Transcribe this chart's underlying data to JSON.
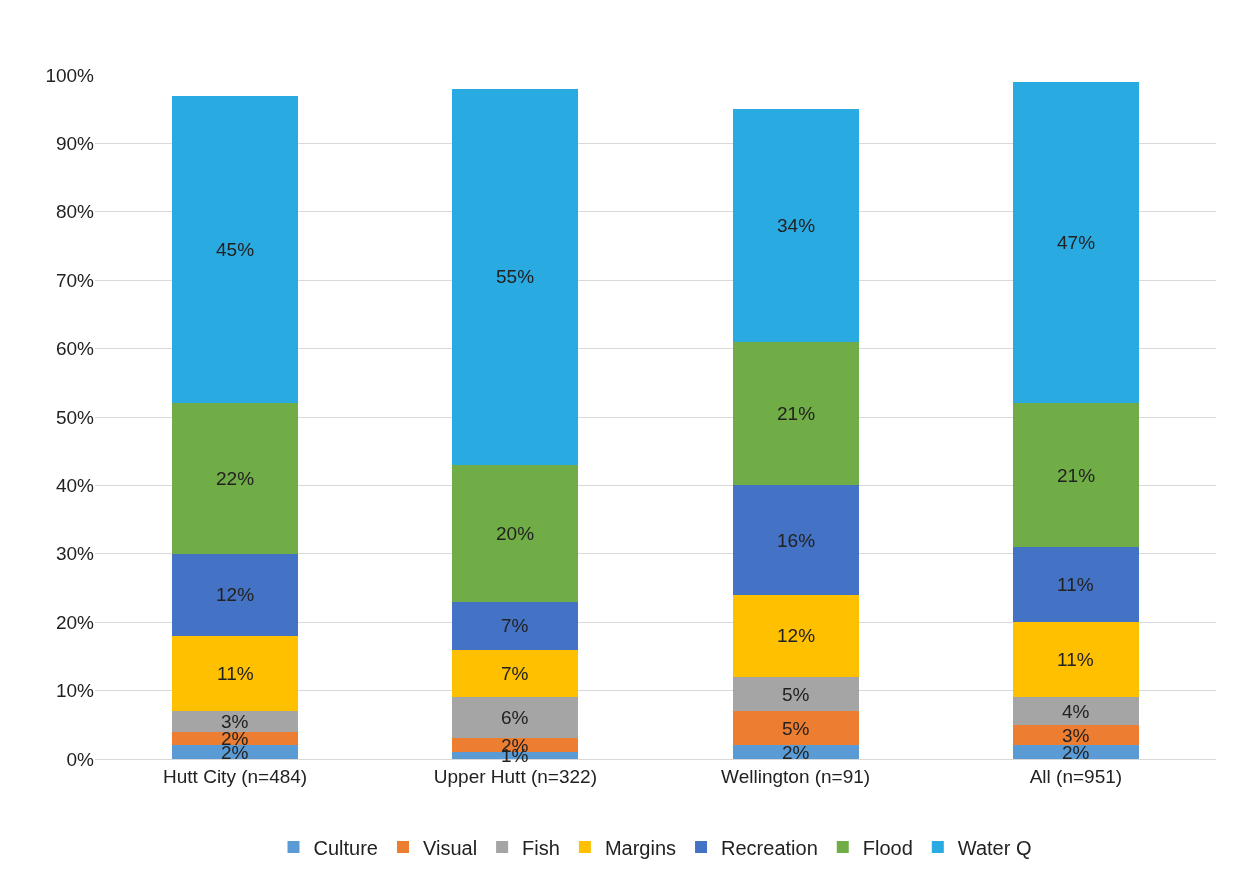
{
  "chart_data": {
    "type": "bar",
    "stacked": true,
    "categories": [
      "Hutt City (n=484)",
      "Upper Hutt (n=322)",
      "Wellington (n=91)",
      "All (n=951)"
    ],
    "series": [
      {
        "name": "Culture",
        "color": "#5b9bd5",
        "values": [
          2,
          1,
          2,
          2
        ],
        "value_labels": [
          "2%",
          "1%",
          "2%",
          "2%"
        ]
      },
      {
        "name": "Visual",
        "color": "#ed7d31",
        "values": [
          2,
          2,
          5,
          3
        ],
        "value_labels": [
          "2%",
          "2%",
          "5%",
          "3%"
        ]
      },
      {
        "name": "Fish",
        "color": "#a5a5a5",
        "values": [
          3,
          6,
          5,
          4
        ],
        "value_labels": [
          "3%",
          "6%",
          "5%",
          "4%"
        ]
      },
      {
        "name": "Margins",
        "color": "#ffc000",
        "values": [
          11,
          7,
          12,
          11
        ],
        "value_labels": [
          "11%",
          "7%",
          "12%",
          "11%"
        ]
      },
      {
        "name": "Recreation",
        "color": "#4472c4",
        "values": [
          12,
          7,
          16,
          11
        ],
        "value_labels": [
          "12%",
          "7%",
          "16%",
          "11%"
        ]
      },
      {
        "name": "Flood",
        "color": "#70ad47",
        "values": [
          22,
          20,
          21,
          21
        ],
        "value_labels": [
          "22%",
          "20%",
          "21%",
          "21%"
        ]
      },
      {
        "name": "Water Q",
        "color": "#29abe2",
        "values": [
          45,
          55,
          34,
          47
        ],
        "value_labels": [
          "45%",
          "55%",
          "34%",
          "47%"
        ]
      }
    ],
    "ylim": [
      0,
      100
    ],
    "yticks": [
      {
        "value": 0,
        "label": "0%"
      },
      {
        "value": 10,
        "label": "10%"
      },
      {
        "value": 20,
        "label": "20%"
      },
      {
        "value": 30,
        "label": "30%"
      },
      {
        "value": 40,
        "label": "40%"
      },
      {
        "value": 50,
        "label": "50%"
      },
      {
        "value": 60,
        "label": "60%"
      },
      {
        "value": 70,
        "label": "70%"
      },
      {
        "value": 80,
        "label": "80%"
      },
      {
        "value": 90,
        "label": "90%"
      },
      {
        "value": 100,
        "label": "100%"
      }
    ],
    "grid": "y",
    "legend": "bottom"
  }
}
